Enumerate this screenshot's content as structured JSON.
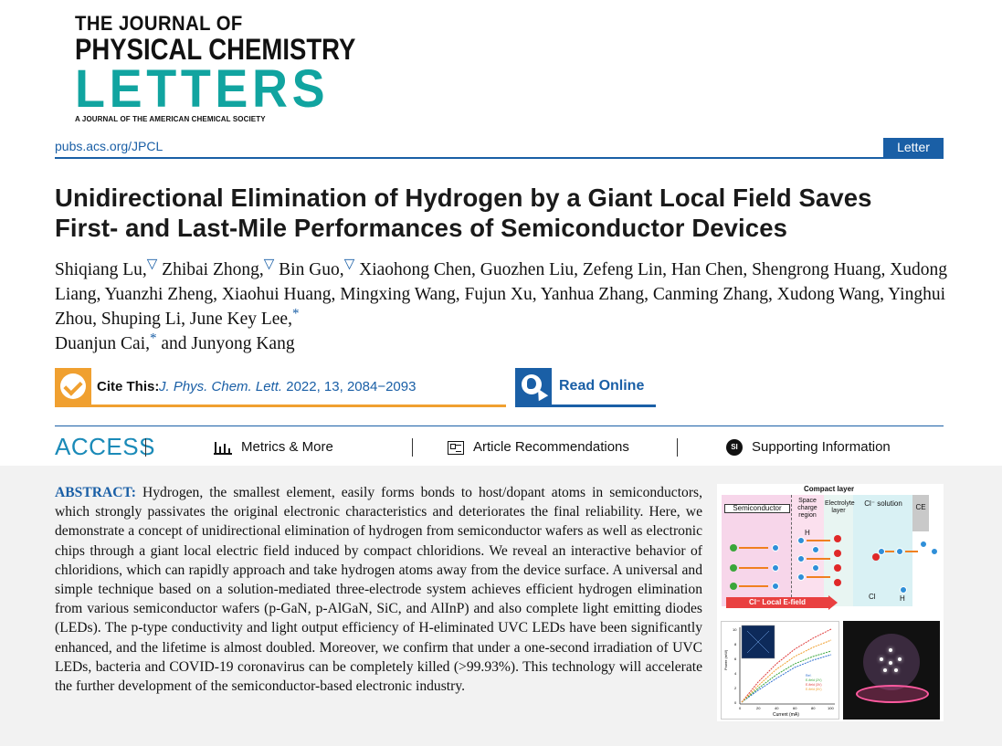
{
  "journal": {
    "logo_line1": "THE JOURNAL OF",
    "logo_line2": "PHYSICAL CHEMISTRY",
    "logo_line3": "LETTERS",
    "logo_line4": "A JOURNAL OF THE AMERICAN CHEMICAL SOCIETY",
    "url": "pubs.acs.org/JPCL",
    "article_type": "Letter",
    "brand_color": "#1a5fa6",
    "accent_color": "#11a4a0"
  },
  "article": {
    "title_line1": "Unidirectional Elimination of Hydrogen by a Giant Local Field Saves",
    "title_line2": "First- and Last-Mile Performances of Semiconductor Devices",
    "authors_parts": [
      "Shiqiang Lu,",
      "▽",
      " Zhibai Zhong,",
      "▽",
      " Bin Guo,",
      "▽",
      " Xiaohong Chen, Guozhen Liu, Zefeng Lin, Han Chen, Shengrong Huang, Xudong Liang, Yuanzhi Zheng, Xiaohui Huang, Mingxing Wang, Fujun Xu, Yanhua Zhang, Canming Zhang, Xudong Wang, Yinghui Zhou, Shuping Li, June Key Lee,",
      "*",
      " Duanjun Cai,",
      "*",
      " and Junyong Kang"
    ]
  },
  "actions": {
    "cite_label": "Cite This:",
    "cite_journal": "J. Phys. Chem. Lett.",
    "cite_details": " 2022, 13, 2084−2093",
    "read_online": "Read Online"
  },
  "access_bar": {
    "access_label": "ACCESS",
    "metrics": "Metrics & More",
    "recommendations": "Article Recommendations",
    "supporting": "Supporting Information",
    "si_icon_text": "SI"
  },
  "abstract": {
    "label": "ABSTRACT:",
    "text": " Hydrogen, the smallest element, easily forms bonds to host/dopant atoms in semiconductors, which strongly passivates the original electronic characteristics and deteriorates the final reliability. Here, we demonstrate a concept of unidirectional elimination of hydrogen from semiconductor wafers as well as electronic chips through a giant local electric field induced by compact chloridions. We reveal an interactive behavior of chloridions, which can rapidly approach and take hydrogen atoms away from the device surface. A universal and simple technique based on a solution-mediated three-electrode system achieves efficient hydrogen elimination from various semiconductor wafers (p-GaN, p-AlGaN, SiC, and AlInP) and also complete light emitting diodes (LEDs). The p-type conductivity and light output efficiency of H-eliminated UVC LEDs have been significantly enhanced, and the lifetime is almost doubled. Moreover, we confirm that under a one-second irradiation of UVC LEDs, bacteria and COVID-19 coronavirus can be completely killed (>99.93%). This technology will accelerate the further development of the semiconductor-based electronic industry."
  },
  "toc_graphic": {
    "compact_layer": "Compact layer",
    "semiconductor": "Semiconductor",
    "space_charge": "Space charge region",
    "electrolyte": "Electrolyte layer",
    "cl_solution": "Cl⁻ solution",
    "ce": "CE",
    "h_label": "H",
    "cl_label": "Cl",
    "field_label": "Cl⁻ Local E-field",
    "plot_ylabel": "Power (mW)",
    "plot_xlabel": "Current (mA)",
    "plot_xticks": [
      "0",
      "20",
      "40",
      "60",
      "80",
      "100"
    ],
    "plot_yticks": [
      "0",
      "2",
      "4",
      "6",
      "8",
      "10"
    ],
    "legend": [
      "Ref.",
      "E-field (2V)",
      "E-field (3V)",
      "E-field (5V)"
    ],
    "series_colors": [
      "#2f6fd0",
      "#3aa63a",
      "#e04040",
      "#f0a030"
    ]
  }
}
